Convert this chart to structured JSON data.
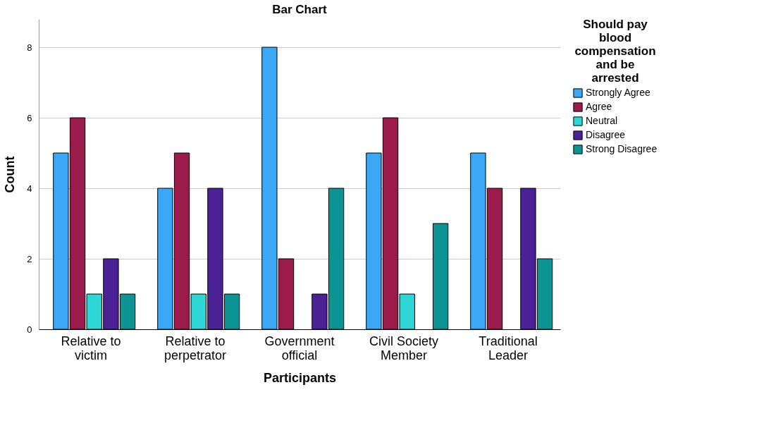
{
  "chart_data": {
    "type": "bar",
    "title": "Bar Chart",
    "xlabel": "Participants",
    "ylabel": "Count",
    "legend_title": "Should pay blood compensation and be arrested",
    "categories": [
      "Relative to victim",
      "Relative to perpetrator",
      "Government official",
      "Civil Society Member",
      "Traditional Leader"
    ],
    "series": [
      {
        "name": "Strongly Agree",
        "color": "#3aa8f5",
        "values": [
          5,
          4,
          8,
          5,
          5
        ]
      },
      {
        "name": "Agree",
        "color": "#9b1b4b",
        "values": [
          6,
          5,
          2,
          6,
          4
        ]
      },
      {
        "name": "Neutral",
        "color": "#2ed6d6",
        "values": [
          1,
          1,
          null,
          1,
          null
        ]
      },
      {
        "name": "Disagree",
        "color": "#4b2196",
        "values": [
          2,
          4,
          1,
          null,
          4
        ]
      },
      {
        "name": "Strong Disagree",
        "color": "#0c9494",
        "values": [
          1,
          1,
          4,
          3,
          2
        ]
      }
    ],
    "ylim": [
      0,
      8.8
    ],
    "yticks": [
      0,
      2,
      4,
      6,
      8
    ],
    "grid": "y",
    "legend": "right"
  }
}
